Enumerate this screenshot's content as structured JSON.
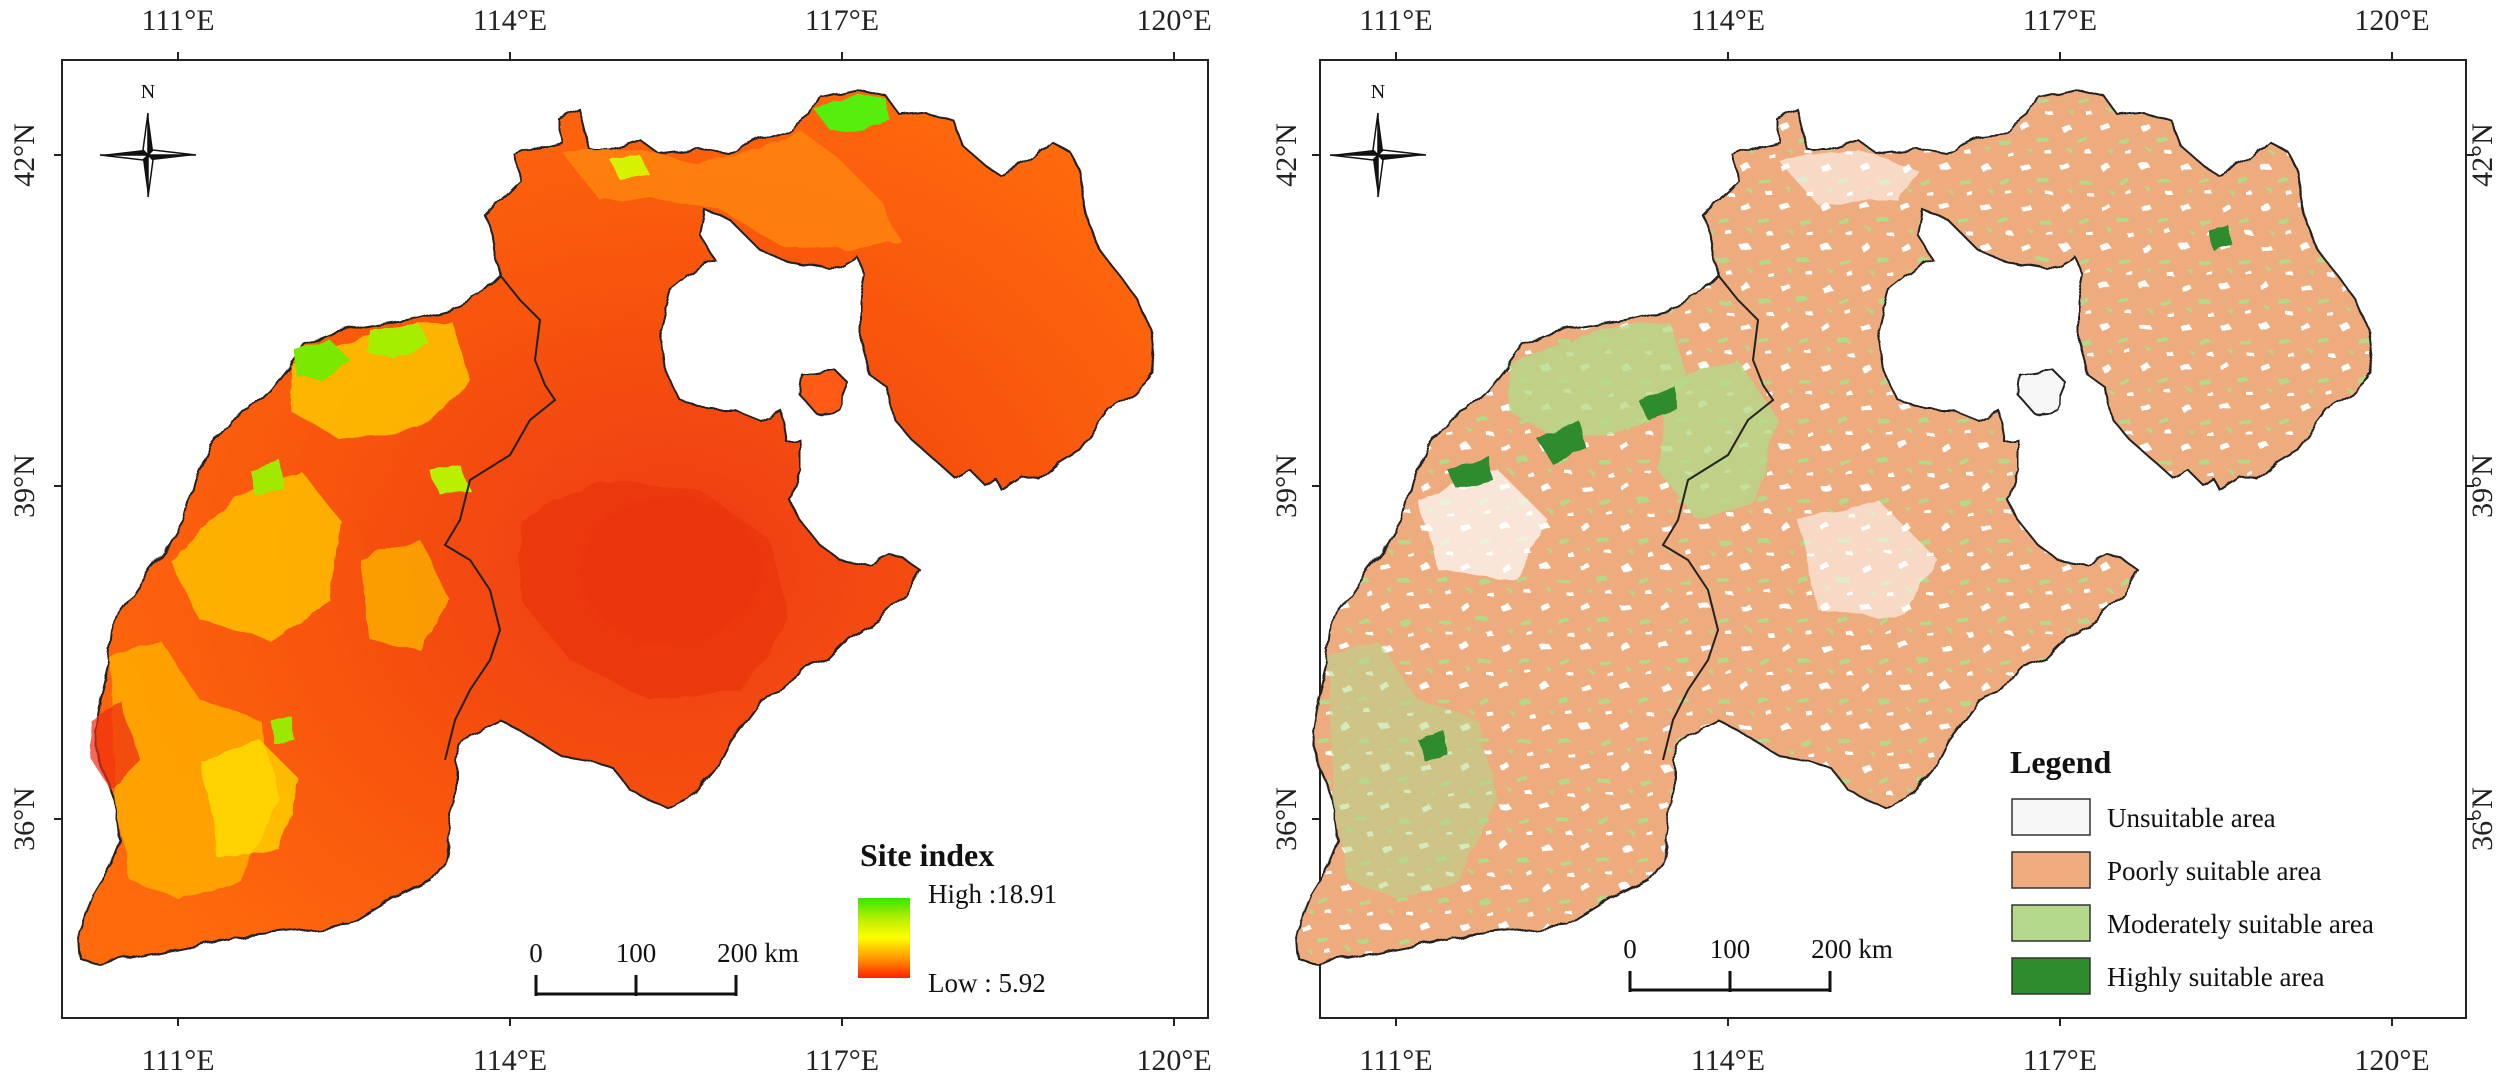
{
  "left_map": {
    "top_ticks": [
      "111°E",
      "114°E",
      "117°E",
      "120°E"
    ],
    "bottom_ticks": [
      "111°E",
      "114°E",
      "117°E",
      "120°E"
    ],
    "left_ticks": [
      "42°N",
      "39°N",
      "36°N"
    ],
    "north_label": "N",
    "scale": {
      "labels": [
        "0",
        "100",
        "200 km"
      ]
    },
    "legend": {
      "title": "Site index",
      "high_label": "High :18.91",
      "low_label": "Low : 5.92",
      "high_value": 18.91,
      "low_value": 5.92,
      "colors": [
        "#39e600",
        "#c8f000",
        "#ffff00",
        "#ff9900",
        "#ff2200"
      ]
    }
  },
  "right_map": {
    "top_ticks": [
      "111°E",
      "114°E",
      "117°E",
      "120°E"
    ],
    "bottom_ticks": [
      "111°E",
      "114°E",
      "117°E",
      "120°E"
    ],
    "right_ticks": [
      "42°N",
      "39°N",
      "36°N"
    ],
    "north_label": "N",
    "scale": {
      "labels": [
        "0",
        "100",
        "200 km"
      ]
    },
    "legend": {
      "title": "Legend",
      "items": [
        {
          "label": "Unsuitable area",
          "color": "#f7f7f7"
        },
        {
          "label": "Poorly suitable area",
          "color": "#eeab7e"
        },
        {
          "label": "Moderately suitable area",
          "color": "#b4d98a"
        },
        {
          "label": "Highly suitable area",
          "color": "#2e8b2e"
        }
      ]
    }
  }
}
